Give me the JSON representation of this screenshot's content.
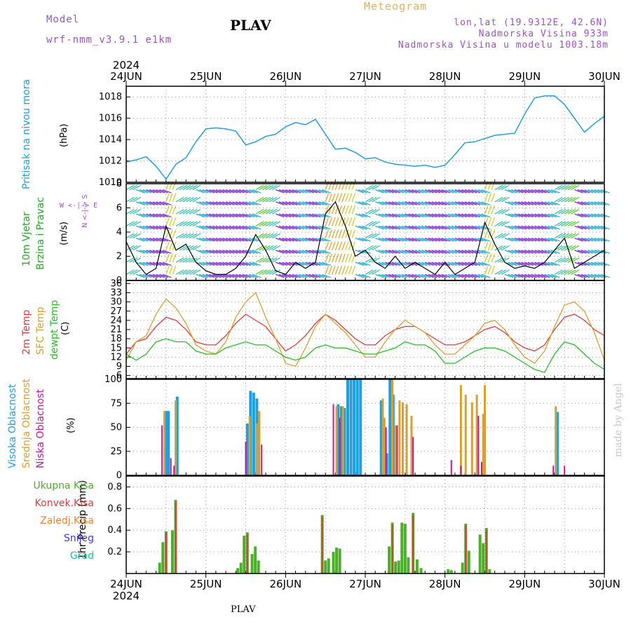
{
  "header": {
    "model_label": "Model",
    "model_name": "wrf-nmm_v3.9.1  e1km",
    "station": "PLAV",
    "product": "Meteogram",
    "coords": "lon,lat (19.9312E, 42.6N)",
    "elevation": "Nadmorska Visina 933m",
    "model_elevation": "Nadmorska Visina u modelu 1003.18m",
    "footer_station": "PLAV",
    "credit": "made by Angel"
  },
  "colors": {
    "pressure": "#1f9fe0",
    "wind": "#22aa22",
    "temp2m": "#e03c3c",
    "sfc": "#d8a030",
    "dewpt": "#22c022",
    "high_cloud": "#1f9fe0",
    "mid_cloud": "#d8a030",
    "low_cloud": "#c0189a",
    "total_rain": "#4caf2a",
    "conv_rain": "#e03c3c",
    "frozen": "#f08030",
    "snow": "#3c3cd8",
    "graupel": "#20c0a0"
  },
  "time_axis": {
    "year": "2024",
    "days": [
      "24JUN",
      "25JUN",
      "26JUN",
      "27JUN",
      "28JUN",
      "29JUN",
      "30JUN"
    ]
  },
  "panels": {
    "pressure": {
      "label": "Pritisak na nivou mora",
      "unit": "(hPa)"
    },
    "wind": {
      "label1": "10m Vjetar",
      "label2": "Brzina i Pravac",
      "unit": "(m/s)",
      "compass_ns": "N <-|-> S",
      "compass_we": "W <-|-> E"
    },
    "temp": {
      "label1": "2m Temp",
      "label2": "SFC Temp",
      "label3": "dewpt Temp",
      "unit": "(C)"
    },
    "cloud": {
      "label1": "Visoka Oblacnost",
      "label2": "Srednja Oblacnost",
      "label3": "Niska Oblacnost",
      "unit": "(%)"
    },
    "precip": {
      "label": "1hr Precip (mm)",
      "legend": [
        "Ukupna Kisa",
        "Konvek.Kisa",
        "Zaledj.Kisa",
        "Snijeg",
        "Grad"
      ]
    }
  },
  "chart_data": [
    {
      "type": "line",
      "title": "Pritisak na nivou mora",
      "ylabel": "(hPa)",
      "ylim": [
        1010,
        1019
      ],
      "yticks": [
        1010,
        1012,
        1014,
        1016,
        1018
      ],
      "x_days": [
        0,
        0.125,
        0.25,
        0.375,
        0.5,
        0.625,
        0.75,
        0.875,
        1,
        1.125,
        1.25,
        1.375,
        1.5,
        1.625,
        1.75,
        1.875,
        2,
        2.125,
        2.25,
        2.375,
        2.5,
        2.625,
        2.75,
        2.875,
        3,
        3.125,
        3.25,
        3.375,
        3.5,
        3.625,
        3.75,
        3.875,
        4,
        4.125,
        4.25,
        4.375,
        4.5,
        4.625,
        4.75,
        4.875,
        5,
        5.125,
        5.25,
        5.375,
        5.5,
        5.625,
        5.75,
        5.875,
        6
      ],
      "series": [
        {
          "values": [
            1011.9,
            1012.1,
            1012.4,
            1011.5,
            1010.3,
            1011.7,
            1012.3,
            1013.8,
            1015.0,
            1015.1,
            1015.0,
            1014.8,
            1013.5,
            1013.8,
            1014.3,
            1014.5,
            1015.2,
            1015.6,
            1015.4,
            1015.9,
            1014.5,
            1013.1,
            1013.2,
            1012.8,
            1012.2,
            1012.3,
            1011.9,
            1011.7,
            1011.6,
            1011.5,
            1011.6,
            1011.4,
            1011.6,
            1012.6,
            1013.7,
            1013.8,
            1014.1,
            1014.4,
            1014.5,
            1014.6,
            1016.4,
            1017.9,
            1018.1,
            1018.1,
            1017.3,
            1016.0,
            1014.7,
            1015.5,
            1016.2
          ]
        }
      ]
    },
    {
      "type": "line",
      "title": "10m Vjetar Brzina i Pravac",
      "ylabel": "(m/s)",
      "ylim": [
        0,
        8
      ],
      "yticks": [
        0,
        2,
        4,
        6,
        8
      ],
      "x_days": [
        0,
        0.125,
        0.25,
        0.375,
        0.5,
        0.625,
        0.75,
        0.875,
        1,
        1.125,
        1.25,
        1.375,
        1.5,
        1.625,
        1.75,
        1.875,
        2,
        2.125,
        2.25,
        2.375,
        2.5,
        2.625,
        2.75,
        2.875,
        3,
        3.125,
        3.25,
        3.375,
        3.5,
        3.625,
        3.75,
        3.875,
        4,
        4.125,
        4.25,
        4.375,
        4.5,
        4.625,
        4.75,
        4.875,
        5,
        5.125,
        5.25,
        5.375,
        5.5,
        5.625,
        5.75,
        5.875,
        6
      ],
      "series": [
        {
          "name": "",
          "values": [
            3.2,
            1.5,
            0.5,
            1.0,
            4.5,
            2.5,
            3.0,
            1.5,
            0.8,
            0.5,
            0.5,
            1.0,
            2.0,
            3.8,
            2.5,
            0.8,
            0.5,
            1.5,
            1.0,
            1.5,
            5.5,
            6.5,
            4.5,
            2.0,
            2.5,
            1.5,
            1.0,
            2.0,
            1.0,
            1.5,
            1.0,
            0.5,
            1.5,
            0.5,
            1.0,
            1.5,
            4.8,
            3.0,
            1.5,
            1.0,
            1.2,
            1.0,
            1.5,
            2.5,
            3.5,
            1.0,
            1.5,
            2.0,
            2.5
          ]
        }
      ]
    },
    {
      "type": "line",
      "title": "2m Temp / SFC Temp / dewpt Temp",
      "ylabel": "(C)",
      "ylim": [
        5,
        37
      ],
      "yticks": [
        6,
        9,
        12,
        15,
        18,
        21,
        24,
        27,
        30,
        33,
        36
      ],
      "x_days": [
        0,
        0.125,
        0.25,
        0.375,
        0.5,
        0.625,
        0.75,
        0.875,
        1,
        1.125,
        1.25,
        1.375,
        1.5,
        1.625,
        1.75,
        1.875,
        2,
        2.125,
        2.25,
        2.375,
        2.5,
        2.625,
        2.75,
        2.875,
        3,
        3.125,
        3.25,
        3.375,
        3.5,
        3.625,
        3.75,
        3.875,
        4,
        4.125,
        4.25,
        4.375,
        4.5,
        4.625,
        4.75,
        4.875,
        5,
        5.125,
        5.25,
        5.375,
        5.5,
        5.625,
        5.75,
        5.875,
        6
      ],
      "series": [
        {
          "name": "2m Temp",
          "values": [
            13,
            17,
            18,
            22,
            25,
            24,
            21,
            17,
            16,
            16,
            19,
            23,
            26,
            24,
            22,
            18,
            14,
            16,
            19,
            23,
            26,
            24,
            21,
            18,
            16,
            16,
            19,
            21,
            22,
            22,
            20,
            18,
            16,
            16,
            17,
            19,
            21,
            22,
            20,
            17,
            15,
            14,
            16,
            21,
            25,
            26,
            24,
            21,
            19
          ]
        },
        {
          "name": "SFC Temp",
          "values": [
            11,
            17,
            19,
            26,
            31,
            28,
            23,
            16,
            14,
            13,
            17,
            25,
            30,
            33,
            25,
            18,
            10,
            9,
            15,
            22,
            26,
            23,
            20,
            16,
            12,
            12,
            17,
            21,
            24,
            22,
            20,
            16,
            13,
            13,
            16,
            19,
            23,
            24,
            21,
            16,
            12,
            10,
            14,
            22,
            29,
            30,
            27,
            20,
            11
          ]
        },
        {
          "name": "dewpt Temp",
          "values": [
            13,
            11,
            13,
            17,
            18,
            17,
            17,
            14,
            13,
            13,
            15,
            16,
            17,
            16,
            16,
            14,
            12,
            11,
            12,
            15,
            16,
            15,
            15,
            14,
            13,
            13,
            14,
            15,
            17,
            16,
            16,
            14,
            10,
            10,
            12,
            14,
            15,
            15,
            14,
            12,
            10,
            8,
            7,
            13,
            17,
            16,
            13,
            10,
            8
          ]
        }
      ]
    },
    {
      "type": "bar",
      "title": "Visoka / Srednja / Niska Oblacnost",
      "ylabel": "(%)",
      "ylim": [
        0,
        100
      ],
      "yticks": [
        0,
        25,
        50,
        75,
        100
      ],
      "series": [
        {
          "name": "Visoka Oblacnost",
          "points": [
            [
              0.5,
              67
            ],
            [
              0.53,
              67
            ],
            [
              0.64,
              82
            ],
            [
              1.52,
              54
            ],
            [
              1.56,
              88
            ],
            [
              1.6,
              86
            ],
            [
              1.64,
              80
            ],
            [
              2.66,
              74
            ],
            [
              2.7,
              72
            ],
            [
              2.74,
              70
            ],
            [
              2.78,
              100
            ],
            [
              2.82,
              100
            ],
            [
              2.86,
              100
            ],
            [
              2.9,
              100
            ],
            [
              2.94,
              100
            ],
            [
              3.2,
              78
            ],
            [
              3.27,
              23
            ],
            [
              3.31,
              100
            ],
            [
              3.35,
              84
            ],
            [
              5.41,
              66
            ]
          ]
        },
        {
          "name": "Srednja Oblacnost",
          "points": [
            [
              0.48,
              67
            ],
            [
              0.62,
              78
            ],
            [
              1.55,
              62
            ],
            [
              1.64,
              54
            ],
            [
              1.67,
              67
            ],
            [
              2.64,
              72
            ],
            [
              2.72,
              72
            ],
            [
              3.22,
              80
            ],
            [
              3.24,
              60
            ],
            [
              3.34,
              100
            ],
            [
              3.38,
              52
            ],
            [
              3.43,
              78
            ],
            [
              3.47,
              76
            ],
            [
              3.52,
              74
            ],
            [
              3.58,
              62
            ],
            [
              4.2,
              94
            ],
            [
              4.26,
              84
            ],
            [
              4.34,
              76
            ],
            [
              4.4,
              84
            ],
            [
              4.48,
              64
            ],
            [
              4.5,
              94
            ],
            [
              5.39,
              72
            ]
          ]
        },
        {
          "name": "Niska Oblacnost",
          "points": [
            [
              0.45,
              52
            ],
            [
              0.56,
              18
            ],
            [
              0.6,
              10
            ],
            [
              1.5,
              35
            ],
            [
              1.7,
              32
            ],
            [
              2.6,
              74
            ],
            [
              2.68,
              60
            ],
            [
              3.26,
              50
            ],
            [
              3.4,
              52
            ],
            [
              3.6,
              40
            ],
            [
              4.08,
              16
            ],
            [
              4.2,
              10
            ],
            [
              4.42,
              62
            ],
            [
              4.46,
              14
            ],
            [
              5.36,
              10
            ],
            [
              5.5,
              10
            ]
          ]
        }
      ]
    },
    {
      "type": "bar",
      "title": "1hr Precip",
      "ylabel": "1hr Precip (mm)",
      "ylim": [
        0,
        0.9
      ],
      "yticks": [
        0.2,
        0.4,
        0.6,
        0.8
      ],
      "series": [
        {
          "name": "Ukupna Kisa",
          "points": [
            [
              0.42,
              0.1
            ],
            [
              0.46,
              0.29
            ],
            [
              0.5,
              0.39
            ],
            [
              0.58,
              0.4
            ],
            [
              0.62,
              0.68
            ],
            [
              1.4,
              0.05
            ],
            [
              1.44,
              0.1
            ],
            [
              1.48,
              0.35
            ],
            [
              1.52,
              0.38
            ],
            [
              1.58,
              0.18
            ],
            [
              1.62,
              0.25
            ],
            [
              1.66,
              0.12
            ],
            [
              2.46,
              0.54
            ],
            [
              2.5,
              0.12
            ],
            [
              2.54,
              0.14
            ],
            [
              2.6,
              0.2
            ],
            [
              2.64,
              0.24
            ],
            [
              2.68,
              0.23
            ],
            [
              3.3,
              0.25
            ],
            [
              3.34,
              0.47
            ],
            [
              3.38,
              0.11
            ],
            [
              3.42,
              0.12
            ],
            [
              3.46,
              0.47
            ],
            [
              3.5,
              0.46
            ],
            [
              3.54,
              0.15
            ],
            [
              3.6,
              0.56
            ],
            [
              3.65,
              0.13
            ],
            [
              3.7,
              0.05
            ],
            [
              4.04,
              0.04
            ],
            [
              4.08,
              0.03
            ],
            [
              4.22,
              0.1
            ],
            [
              4.26,
              0.46
            ],
            [
              4.3,
              0.21
            ],
            [
              4.44,
              0.36
            ],
            [
              4.48,
              0.28
            ],
            [
              4.52,
              0.42
            ],
            [
              4.56,
              0.04
            ]
          ]
        },
        {
          "name": "Konvek.Kisa",
          "points": [
            [
              0.5,
              0.38
            ],
            [
              0.62,
              0.66
            ],
            [
              1.52,
              0.36
            ],
            [
              2.46,
              0.52
            ],
            [
              3.34,
              0.45
            ],
            [
              3.6,
              0.54
            ],
            [
              4.26,
              0.44
            ],
            [
              4.52,
              0.4
            ]
          ]
        }
      ]
    }
  ]
}
